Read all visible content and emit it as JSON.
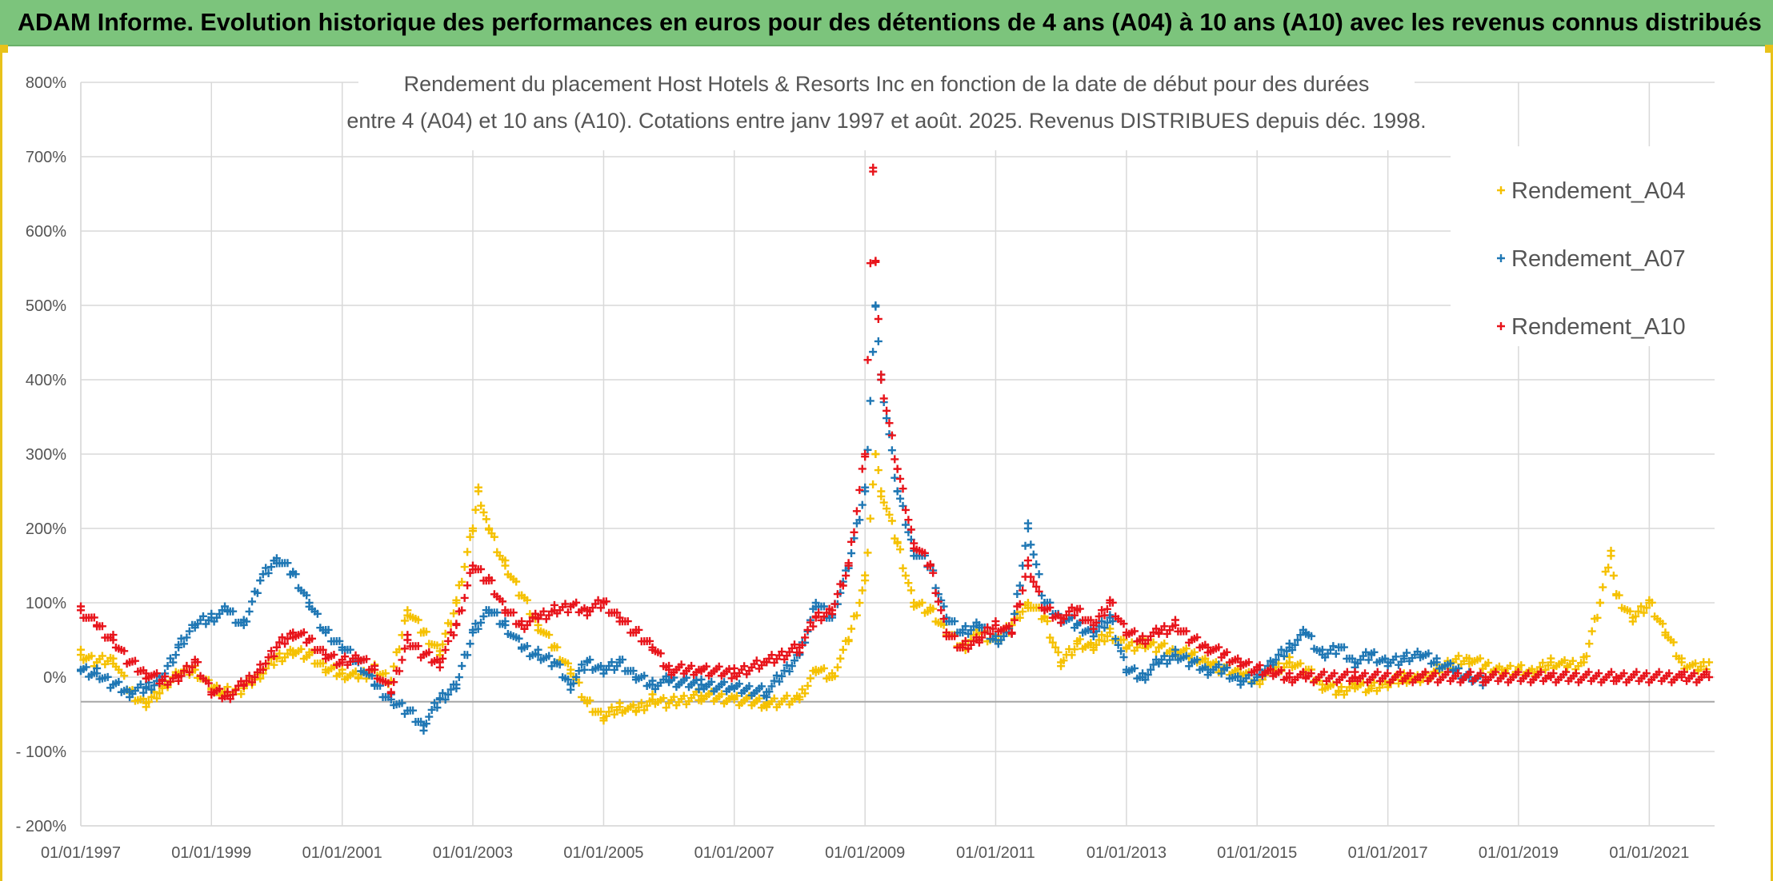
{
  "banner": {
    "text": "ADAM Informe. Evolution historique des performances en euros pour des détentions de 4 ans (A04) à 10 ans (A10) avec les revenus connus distribués"
  },
  "colors": {
    "banner_bg": "#7cc47c",
    "A04": "#f5c100",
    "A07": "#1f77b4",
    "A10": "#e8141b",
    "grid": "#d9d9d9",
    "zero_line": "#a6a6a6"
  },
  "chart_data": {
    "type": "scatter",
    "title_lines": [
      "Rendement du placement Host Hotels & Resorts Inc en fonction de la date de début pour des durées",
      "entre 4 (A04) et 10 ans (A10). Cotations entre janv 1997 et août. 2025. Revenus DISTRIBUES depuis déc. 1998."
    ],
    "xlabel": "",
    "ylabel": "",
    "x_ticks": [
      "01/01/1997",
      "01/01/1999",
      "01/01/2001",
      "01/01/2003",
      "01/01/2005",
      "01/01/2007",
      "01/01/2009",
      "01/01/2011",
      "01/01/2013",
      "01/01/2015",
      "01/01/2017",
      "01/01/2019",
      "01/01/2021"
    ],
    "xlim": [
      "1997-01-01",
      "2022-01-01"
    ],
    "y_ticks": [
      "800%",
      "700%",
      "600%",
      "500%",
      "400%",
      "300%",
      "200%",
      "100%",
      "0%",
      "- 100%",
      "- 200%"
    ],
    "ylim": [
      -200,
      800
    ],
    "y_unit": "%",
    "marker": "+",
    "legend_position": "top-right",
    "legend": [
      "Rendement_A04",
      "Rendement_A07",
      "Rendement_A10"
    ],
    "series": [
      {
        "name": "Rendement_A04",
        "color": "#f5c100",
        "points": [
          [
            "1997-01-01",
            30
          ],
          [
            "1997-04-01",
            20
          ],
          [
            "1997-07-01",
            25
          ],
          [
            "1997-10-01",
            -20
          ],
          [
            "1998-01-01",
            -35
          ],
          [
            "1998-04-01",
            -15
          ],
          [
            "1998-07-01",
            5
          ],
          [
            "1998-10-01",
            10
          ],
          [
            "1999-01-01",
            -15
          ],
          [
            "1999-04-01",
            -20
          ],
          [
            "1999-07-01",
            -15
          ],
          [
            "1999-10-01",
            5
          ],
          [
            "2000-01-01",
            25
          ],
          [
            "2000-04-01",
            35
          ],
          [
            "2000-07-01",
            30
          ],
          [
            "2000-10-01",
            10
          ],
          [
            "2001-01-01",
            5
          ],
          [
            "2001-04-01",
            0
          ],
          [
            "2001-07-01",
            10
          ],
          [
            "2001-10-01",
            -5
          ],
          [
            "2002-01-01",
            90
          ],
          [
            "2002-04-01",
            60
          ],
          [
            "2002-07-01",
            35
          ],
          [
            "2002-10-01",
            100
          ],
          [
            "2003-01-01",
            200
          ],
          [
            "2003-02-01",
            250
          ],
          [
            "2003-04-01",
            200
          ],
          [
            "2003-07-01",
            150
          ],
          [
            "2003-10-01",
            110
          ],
          [
            "2004-01-01",
            70
          ],
          [
            "2004-04-01",
            40
          ],
          [
            "2004-07-01",
            10
          ],
          [
            "2004-10-01",
            -35
          ],
          [
            "2005-01-01",
            -55
          ],
          [
            "2005-04-01",
            -40
          ],
          [
            "2005-07-01",
            -45
          ],
          [
            "2005-10-01",
            -30
          ],
          [
            "2006-01-01",
            -35
          ],
          [
            "2006-07-01",
            -25
          ],
          [
            "2007-01-01",
            -30
          ],
          [
            "2007-07-01",
            -35
          ],
          [
            "2008-01-01",
            -30
          ],
          [
            "2008-04-01",
            10
          ],
          [
            "2008-07-01",
            0
          ],
          [
            "2008-10-01",
            50
          ],
          [
            "2009-01-01",
            130
          ],
          [
            "2009-03-01",
            300
          ],
          [
            "2009-04-01",
            250
          ],
          [
            "2009-07-01",
            180
          ],
          [
            "2009-10-01",
            100
          ],
          [
            "2010-01-01",
            90
          ],
          [
            "2010-04-01",
            60
          ],
          [
            "2010-07-01",
            40
          ],
          [
            "2010-10-01",
            60
          ],
          [
            "2011-01-01",
            50
          ],
          [
            "2011-04-01",
            70
          ],
          [
            "2011-07-01",
            100
          ],
          [
            "2011-10-01",
            80
          ],
          [
            "2012-01-01",
            20
          ],
          [
            "2012-04-01",
            45
          ],
          [
            "2012-07-01",
            40
          ],
          [
            "2012-10-01",
            60
          ],
          [
            "2013-01-01",
            40
          ],
          [
            "2013-04-01",
            45
          ],
          [
            "2013-07-01",
            40
          ],
          [
            "2013-10-01",
            35
          ],
          [
            "2014-01-01",
            30
          ],
          [
            "2014-04-01",
            20
          ],
          [
            "2014-07-01",
            10
          ],
          [
            "2014-10-01",
            5
          ],
          [
            "2015-01-01",
            -5
          ],
          [
            "2015-04-01",
            10
          ],
          [
            "2015-07-01",
            20
          ],
          [
            "2015-10-01",
            10
          ],
          [
            "2016-01-01",
            -10
          ],
          [
            "2016-04-01",
            -20
          ],
          [
            "2016-07-01",
            -10
          ],
          [
            "2016-10-01",
            -15
          ],
          [
            "2017-01-01",
            -10
          ],
          [
            "2017-04-01",
            0
          ],
          [
            "2017-07-01",
            -5
          ],
          [
            "2017-10-01",
            10
          ],
          [
            "2018-01-01",
            20
          ],
          [
            "2018-04-01",
            25
          ],
          [
            "2018-07-01",
            15
          ],
          [
            "2018-10-01",
            10
          ],
          [
            "2019-01-01",
            10
          ],
          [
            "2019-04-01",
            5
          ],
          [
            "2019-07-01",
            20
          ],
          [
            "2019-10-01",
            15
          ],
          [
            "2020-01-01",
            20
          ],
          [
            "2020-04-01",
            100
          ],
          [
            "2020-06-01",
            170
          ],
          [
            "2020-07-01",
            110
          ],
          [
            "2020-10-01",
            80
          ],
          [
            "2021-01-01",
            100
          ],
          [
            "2021-04-01",
            60
          ],
          [
            "2021-07-01",
            20
          ],
          [
            "2021-10-01",
            10
          ],
          [
            "2021-12-01",
            20
          ]
        ]
      },
      {
        "name": "Rendement_A07",
        "color": "#1f77b4",
        "points": [
          [
            "1997-01-01",
            10
          ],
          [
            "1997-04-01",
            5
          ],
          [
            "1997-07-01",
            -10
          ],
          [
            "1997-10-01",
            -20
          ],
          [
            "1998-01-01",
            -15
          ],
          [
            "1998-04-01",
            0
          ],
          [
            "1998-07-01",
            40
          ],
          [
            "1998-10-01",
            70
          ],
          [
            "1999-01-01",
            80
          ],
          [
            "1999-04-01",
            90
          ],
          [
            "1999-07-01",
            70
          ],
          [
            "1999-10-01",
            130
          ],
          [
            "2000-01-01",
            160
          ],
          [
            "2000-04-01",
            140
          ],
          [
            "2000-07-01",
            100
          ],
          [
            "2000-10-01",
            60
          ],
          [
            "2001-01-01",
            40
          ],
          [
            "2001-04-01",
            20
          ],
          [
            "2001-07-01",
            -10
          ],
          [
            "2001-10-01",
            -30
          ],
          [
            "2002-01-01",
            -45
          ],
          [
            "2002-04-01",
            -65
          ],
          [
            "2002-07-01",
            -30
          ],
          [
            "2002-10-01",
            -10
          ],
          [
            "2003-01-01",
            60
          ],
          [
            "2003-04-01",
            90
          ],
          [
            "2003-07-01",
            70
          ],
          [
            "2003-10-01",
            40
          ],
          [
            "2004-01-01",
            30
          ],
          [
            "2004-04-01",
            20
          ],
          [
            "2004-07-01",
            -10
          ],
          [
            "2004-10-01",
            20
          ],
          [
            "2005-01-01",
            10
          ],
          [
            "2005-04-01",
            20
          ],
          [
            "2005-07-01",
            0
          ],
          [
            "2005-10-01",
            -10
          ],
          [
            "2006-01-01",
            -5
          ],
          [
            "2006-07-01",
            -10
          ],
          [
            "2007-01-01",
            -15
          ],
          [
            "2007-07-01",
            -20
          ],
          [
            "2008-01-01",
            30
          ],
          [
            "2008-04-01",
            100
          ],
          [
            "2008-07-01",
            80
          ],
          [
            "2008-10-01",
            150
          ],
          [
            "2009-01-01",
            250
          ],
          [
            "2009-03-01",
            500
          ],
          [
            "2009-04-01",
            400
          ],
          [
            "2009-07-01",
            250
          ],
          [
            "2009-10-01",
            170
          ],
          [
            "2010-01-01",
            150
          ],
          [
            "2010-04-01",
            80
          ],
          [
            "2010-07-01",
            60
          ],
          [
            "2010-10-01",
            70
          ],
          [
            "2011-01-01",
            50
          ],
          [
            "2011-04-01",
            60
          ],
          [
            "2011-07-01",
            200
          ],
          [
            "2011-10-01",
            100
          ],
          [
            "2012-01-01",
            80
          ],
          [
            "2012-04-01",
            70
          ],
          [
            "2012-07-01",
            60
          ],
          [
            "2012-10-01",
            80
          ],
          [
            "2013-01-01",
            10
          ],
          [
            "2013-04-01",
            0
          ],
          [
            "2013-07-01",
            20
          ],
          [
            "2013-10-01",
            30
          ],
          [
            "2014-01-01",
            20
          ],
          [
            "2014-04-01",
            10
          ],
          [
            "2014-07-01",
            10
          ],
          [
            "2014-10-01",
            -5
          ],
          [
            "2015-01-01",
            0
          ],
          [
            "2015-04-01",
            20
          ],
          [
            "2015-07-01",
            40
          ],
          [
            "2015-10-01",
            60
          ],
          [
            "2016-01-01",
            30
          ],
          [
            "2016-04-01",
            40
          ],
          [
            "2016-07-01",
            20
          ],
          [
            "2016-10-01",
            30
          ],
          [
            "2017-01-01",
            20
          ],
          [
            "2017-04-01",
            25
          ],
          [
            "2017-07-01",
            30
          ],
          [
            "2017-10-01",
            20
          ],
          [
            "2018-01-01",
            10
          ],
          [
            "2018-04-01",
            0
          ],
          [
            "2018-07-01",
            -5
          ]
        ]
      },
      {
        "name": "Rendement_A10",
        "color": "#e8141b",
        "points": [
          [
            "1997-01-01",
            90
          ],
          [
            "1997-04-01",
            70
          ],
          [
            "1997-07-01",
            50
          ],
          [
            "1997-10-01",
            20
          ],
          [
            "1998-01-01",
            5
          ],
          [
            "1998-04-01",
            -5
          ],
          [
            "1998-07-01",
            0
          ],
          [
            "1998-10-01",
            20
          ],
          [
            "1999-01-01",
            -20
          ],
          [
            "1999-04-01",
            -25
          ],
          [
            "1999-07-01",
            -10
          ],
          [
            "1999-10-01",
            10
          ],
          [
            "2000-01-01",
            40
          ],
          [
            "2000-04-01",
            60
          ],
          [
            "2000-07-01",
            50
          ],
          [
            "2000-10-01",
            30
          ],
          [
            "2001-01-01",
            20
          ],
          [
            "2001-04-01",
            25
          ],
          [
            "2001-07-01",
            10
          ],
          [
            "2001-10-01",
            -20
          ],
          [
            "2002-01-01",
            50
          ],
          [
            "2002-04-01",
            30
          ],
          [
            "2002-07-01",
            20
          ],
          [
            "2002-10-01",
            70
          ],
          [
            "2003-01-01",
            150
          ],
          [
            "2003-04-01",
            130
          ],
          [
            "2003-07-01",
            90
          ],
          [
            "2003-10-01",
            70
          ],
          [
            "2004-01-01",
            80
          ],
          [
            "2004-04-01",
            90
          ],
          [
            "2004-07-01",
            95
          ],
          [
            "2004-10-01",
            90
          ],
          [
            "2005-01-01",
            100
          ],
          [
            "2005-04-01",
            80
          ],
          [
            "2005-07-01",
            60
          ],
          [
            "2005-10-01",
            40
          ],
          [
            "2006-01-01",
            10
          ],
          [
            "2006-07-01",
            10
          ],
          [
            "2007-01-01",
            5
          ],
          [
            "2007-07-01",
            20
          ],
          [
            "2008-01-01",
            40
          ],
          [
            "2008-04-01",
            80
          ],
          [
            "2008-07-01",
            90
          ],
          [
            "2008-10-01",
            150
          ],
          [
            "2009-01-01",
            300
          ],
          [
            "2009-02-15",
            680
          ],
          [
            "2009-03-01",
            560
          ],
          [
            "2009-04-01",
            400
          ],
          [
            "2009-07-01",
            280
          ],
          [
            "2009-10-01",
            180
          ],
          [
            "2010-01-01",
            150
          ],
          [
            "2010-04-01",
            60
          ],
          [
            "2010-07-01",
            40
          ],
          [
            "2010-10-01",
            50
          ],
          [
            "2011-01-01",
            70
          ],
          [
            "2011-04-01",
            60
          ],
          [
            "2011-07-01",
            150
          ],
          [
            "2011-10-01",
            90
          ],
          [
            "2012-01-01",
            80
          ],
          [
            "2012-04-01",
            90
          ],
          [
            "2012-07-01",
            70
          ],
          [
            "2012-10-01",
            100
          ],
          [
            "2013-01-01",
            60
          ],
          [
            "2013-04-01",
            50
          ],
          [
            "2013-07-01",
            60
          ],
          [
            "2013-10-01",
            70
          ],
          [
            "2014-01-01",
            50
          ],
          [
            "2014-04-01",
            40
          ],
          [
            "2014-07-01",
            30
          ],
          [
            "2014-10-01",
            20
          ],
          [
            "2015-01-01",
            10
          ],
          [
            "2015-04-01",
            5
          ],
          [
            "2015-07-01",
            0
          ],
          [
            "2015-10-01",
            0
          ],
          [
            "2016-07-01",
            0
          ],
          [
            "2017-07-01",
            0
          ],
          [
            "2018-07-01",
            0
          ],
          [
            "2019-07-01",
            0
          ],
          [
            "2020-07-01",
            0
          ],
          [
            "2021-07-01",
            0
          ],
          [
            "2021-12-01",
            0
          ]
        ]
      }
    ]
  }
}
